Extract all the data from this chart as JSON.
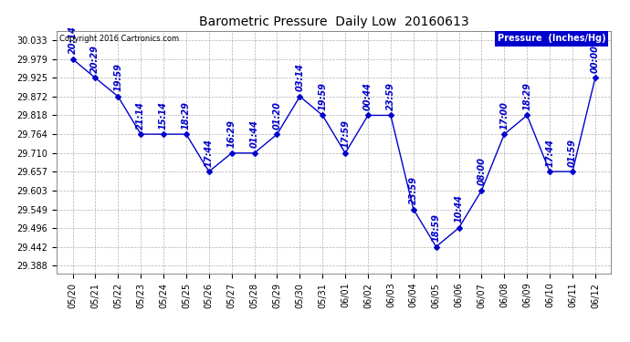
{
  "title": "Barometric Pressure  Daily Low  20160613",
  "ylabel": "Pressure  (Inches/Hg)",
  "background_color": "#ffffff",
  "grid_color": "#b0b0b0",
  "line_color": "#0000cc",
  "text_color": "#0000cc",
  "copyright_text": "Copyright 2016 Cartronics.com",
  "ylim_min": 29.365,
  "ylim_max": 30.06,
  "yticks": [
    29.388,
    29.442,
    29.496,
    29.549,
    29.603,
    29.657,
    29.71,
    29.764,
    29.818,
    29.872,
    29.925,
    29.979,
    30.033
  ],
  "data_points": [
    {
      "date": "05/20",
      "time": "20:14",
      "value": 29.979
    },
    {
      "date": "05/21",
      "time": "20:29",
      "value": 29.925
    },
    {
      "date": "05/22",
      "time": "19:59",
      "value": 29.872
    },
    {
      "date": "05/23",
      "time": "21:14",
      "value": 29.764
    },
    {
      "date": "05/24",
      "time": "15:14",
      "value": 29.764
    },
    {
      "date": "05/25",
      "time": "18:29",
      "value": 29.764
    },
    {
      "date": "05/26",
      "time": "17:44",
      "value": 29.657
    },
    {
      "date": "05/27",
      "time": "16:29",
      "value": 29.71
    },
    {
      "date": "05/28",
      "time": "01:44",
      "value": 29.71
    },
    {
      "date": "05/29",
      "time": "01:20",
      "value": 29.764
    },
    {
      "date": "05/30",
      "time": "03:14",
      "value": 29.872
    },
    {
      "date": "05/31",
      "time": "19:59",
      "value": 29.818
    },
    {
      "date": "06/01",
      "time": "17:59",
      "value": 29.71
    },
    {
      "date": "06/02",
      "time": "00:44",
      "value": 29.818
    },
    {
      "date": "06/03",
      "time": "23:59",
      "value": 29.818
    },
    {
      "date": "06/04",
      "time": "23:59",
      "value": 29.549
    },
    {
      "date": "06/05",
      "time": "18:59",
      "value": 29.442
    },
    {
      "date": "06/06",
      "time": "10:44",
      "value": 29.496
    },
    {
      "date": "06/07",
      "time": "08:00",
      "value": 29.603
    },
    {
      "date": "06/08",
      "time": "17:00",
      "value": 29.764
    },
    {
      "date": "06/09",
      "time": "18:29",
      "value": 29.818
    },
    {
      "date": "06/10",
      "time": "17:44",
      "value": 29.657
    },
    {
      "date": "06/11",
      "time": "01:59",
      "value": 29.657
    },
    {
      "date": "06/12",
      "time": "00:00",
      "value": 29.925
    }
  ],
  "xlabels": [
    "05/20",
    "05/21",
    "05/22",
    "05/23",
    "05/24",
    "05/25",
    "05/26",
    "05/27",
    "05/28",
    "05/29",
    "05/30",
    "05/31",
    "06/01",
    "06/02",
    "06/03",
    "06/04",
    "06/05",
    "06/06",
    "06/07",
    "06/08",
    "06/09",
    "06/10",
    "06/11",
    "06/12"
  ],
  "figwidth": 6.9,
  "figheight": 3.75,
  "dpi": 100,
  "title_fontsize": 10,
  "tick_fontsize": 7,
  "annotation_fontsize": 7,
  "legend_fontsize": 7
}
